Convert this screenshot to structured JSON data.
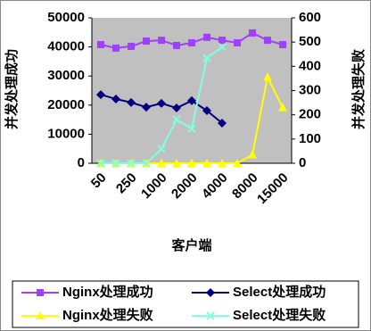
{
  "chart_data": {
    "type": "line",
    "x_label": "客户端",
    "y_label": "并发处理成功",
    "y2_label": "并发处理失败",
    "categories": [
      "50",
      null,
      "250",
      null,
      "1000",
      null,
      "2000",
      null,
      "4000",
      null,
      "8000",
      null,
      "15000"
    ],
    "ylim": [
      0,
      50000
    ],
    "yticks": [
      0,
      10000,
      20000,
      30000,
      40000,
      50000
    ],
    "y2lim": [
      0,
      600
    ],
    "y2ticks": [
      0,
      100,
      200,
      300,
      400,
      500,
      600
    ],
    "plot_background": "#c0c0c0",
    "series": [
      {
        "name": "Nginx处理成功",
        "color": "#a040ff",
        "marker": "square",
        "values": [
          40800,
          39600,
          40200,
          42000,
          42300,
          40500,
          41400,
          43300,
          42300,
          41400,
          44800,
          42300,
          40800
        ]
      },
      {
        "name": "Select处理成功",
        "color": "#000080",
        "marker": "diamond",
        "values": [
          23600,
          22100,
          20900,
          19300,
          20600,
          19000,
          21500,
          18100,
          13800,
          null,
          null,
          null,
          null
        ]
      },
      {
        "name": "Nginx处理失败",
        "color": "#ffff00",
        "marker": "triangle",
        "axis": "y2",
        "values": [
          0,
          0,
          0,
          0,
          0,
          0,
          0,
          0,
          0,
          0,
          35,
          355,
          230
        ]
      },
      {
        "name": "Select处理失败",
        "color": "#80ffe0",
        "marker": "x",
        "axis": "y2",
        "values": [
          0,
          0,
          0,
          0,
          59,
          180,
          143,
          434,
          480,
          null,
          null,
          null,
          null
        ]
      }
    ]
  }
}
